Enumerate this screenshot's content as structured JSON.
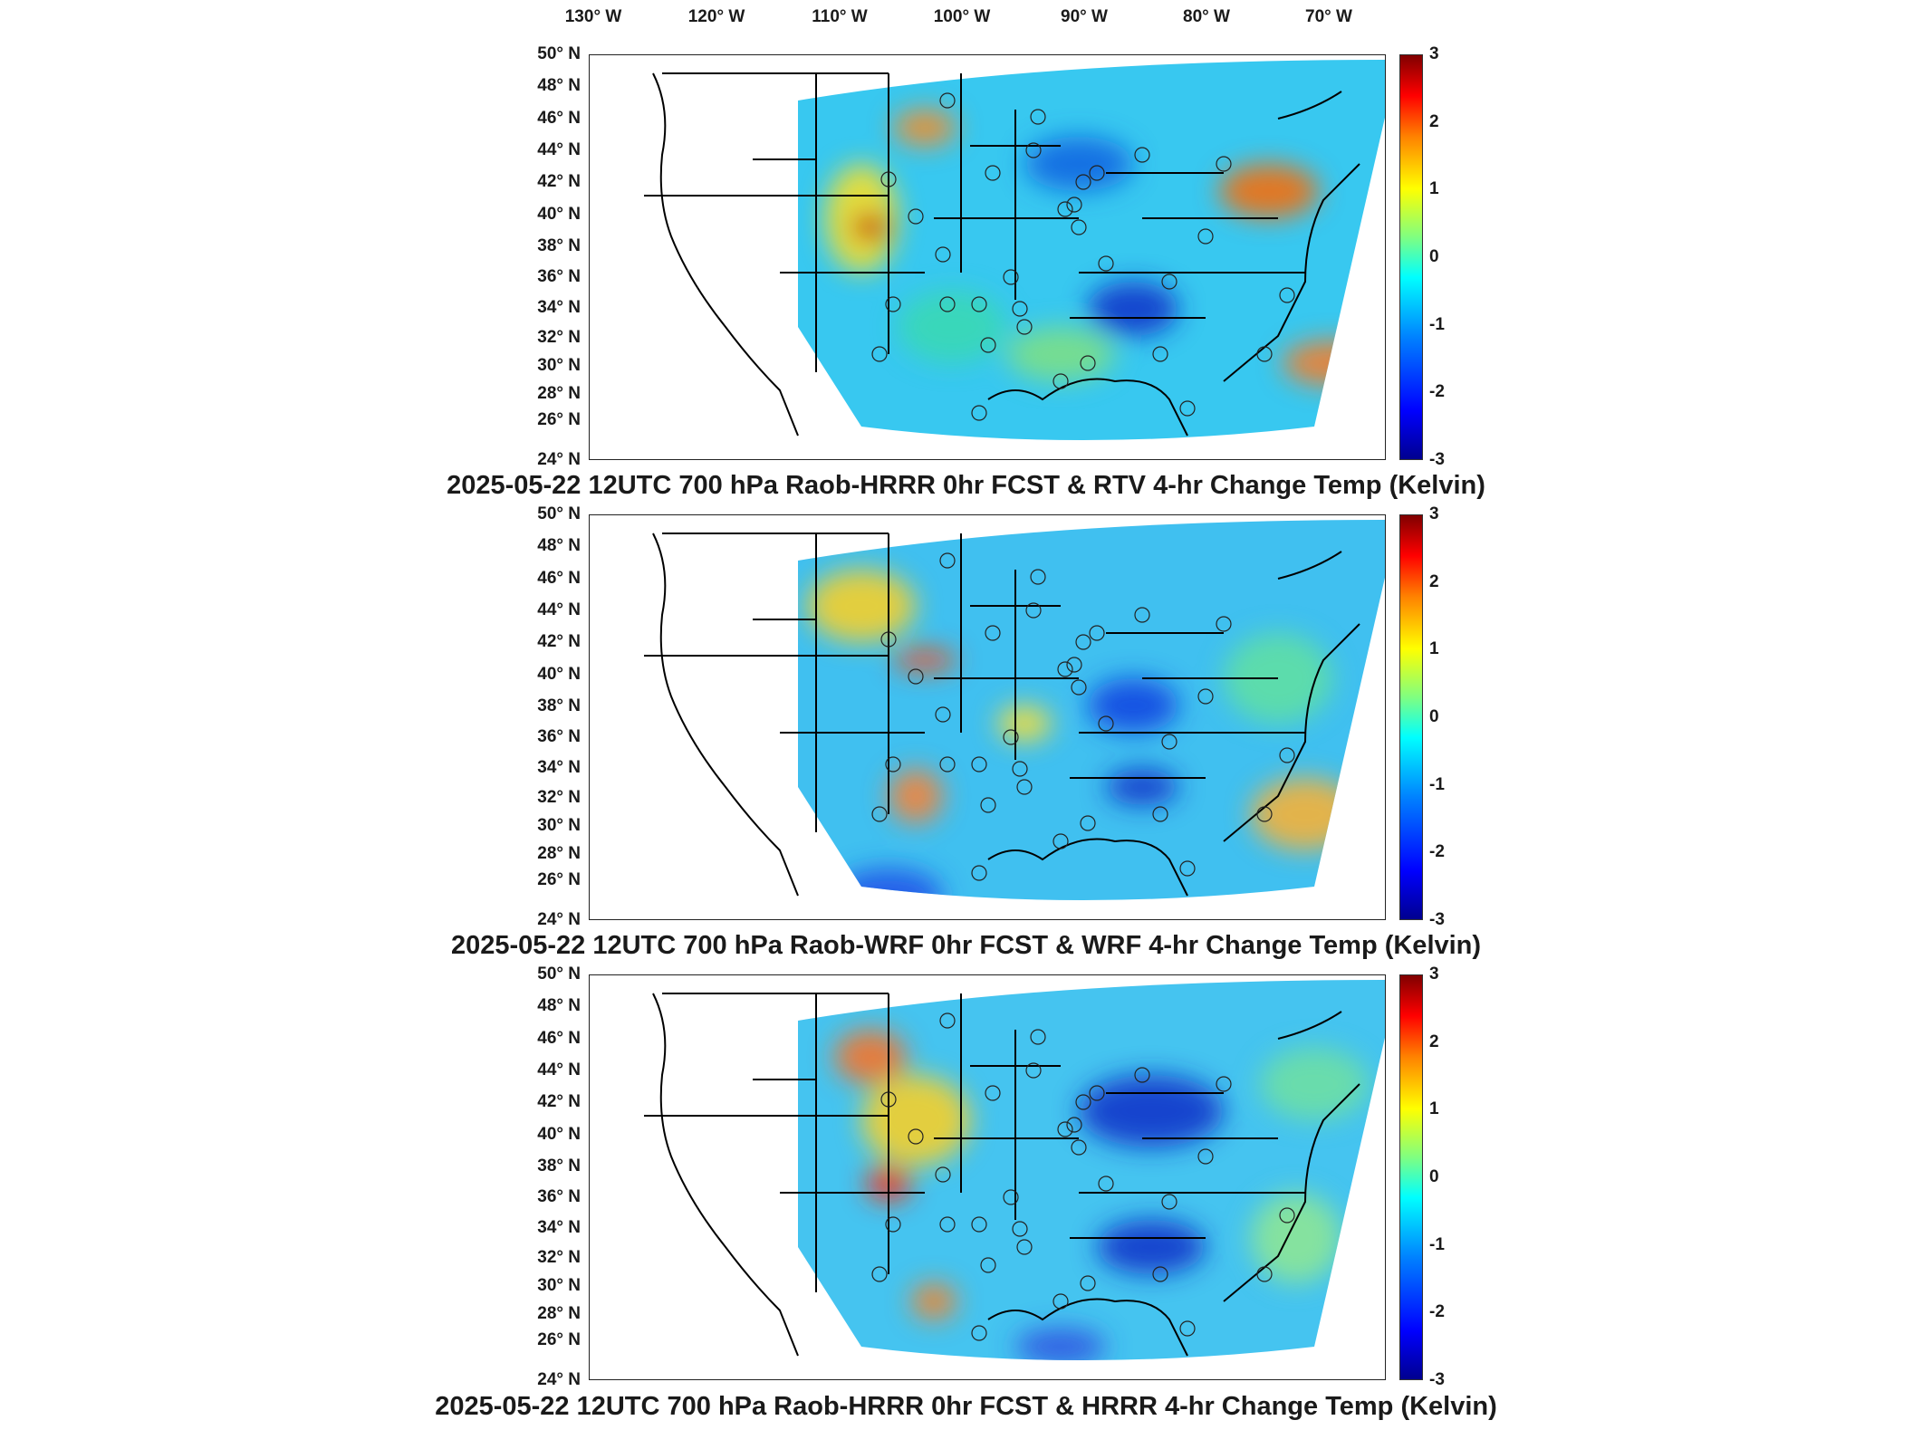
{
  "longitude_labels": [
    "130° W",
    "120° W",
    "110° W",
    "100° W",
    "90° W",
    "80° W",
    "70° W"
  ],
  "latitude_labels": [
    "50° N",
    "48° N",
    "46° N",
    "44° N",
    "42° N",
    "40° N",
    "38° N",
    "36° N",
    "34° N",
    "32° N",
    "30° N",
    "28° N",
    "26° N",
    "24° N"
  ],
  "colorbar": {
    "ticks": [
      "3",
      "2",
      "1",
      "0",
      "-1",
      "-2",
      "-3"
    ],
    "range": [
      -3,
      3
    ],
    "colormap": "jet",
    "colors": {
      "min": "#00008f",
      "mid": "#80ff80",
      "max": "#800000"
    }
  },
  "panels": [
    {
      "title": "2025-05-22 12UTC 700 hPa Raob-HRRR 0hr FCST & RTV 4-hr Change Temp (Kelvin)"
    },
    {
      "title": "2025-05-22 12UTC 700 hPa Raob-WRF 0hr FCST & WRF 4-hr Change Temp (Kelvin)"
    },
    {
      "title": "2025-05-22 12UTC 700 hPa Raob-HRRR 0hr FCST & HRRR 4-hr Change Temp (Kelvin)"
    }
  ],
  "map_colors": {
    "field_dominant": "#33ccff",
    "outline": "#000000",
    "land_blank": "#ffffff"
  }
}
